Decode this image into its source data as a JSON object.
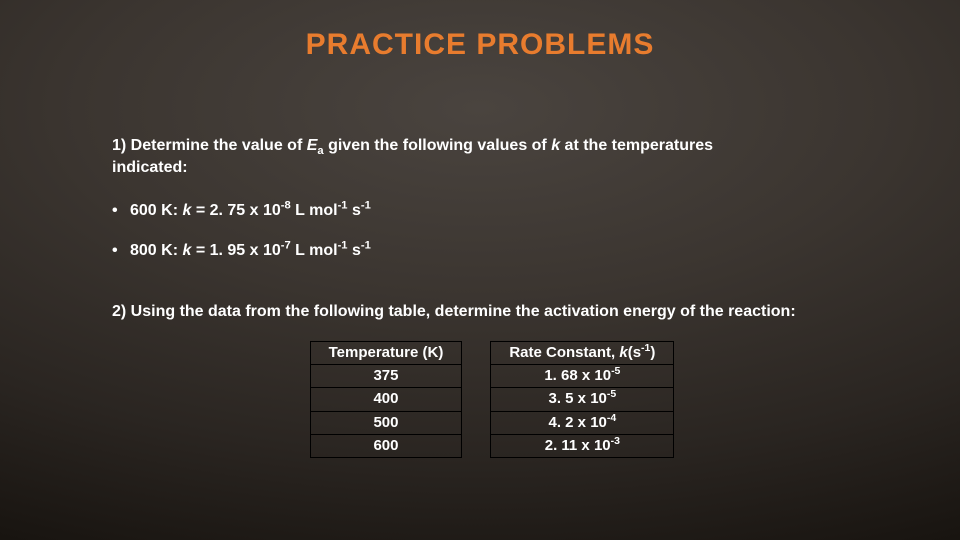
{
  "title": {
    "text": "PRACTICE PROBLEMS",
    "color": "#e87c2e"
  },
  "q1": {
    "prefix": "1) Determine the value of ",
    "var": "E",
    "varsub": "a",
    "mid": " given the following values of ",
    "k": "k",
    "suffix": " at the temperatures",
    "line2": "indicated:"
  },
  "bullets": [
    {
      "temp": "600 K: ",
      "k": "k",
      "eq": " = 2. 75 x 10",
      "exp": "-8",
      "unit1": " L mol",
      "u1exp": "-1",
      "unit2": " s",
      "u2exp": "-1"
    },
    {
      "temp": "800 K: ",
      "k": "k",
      "eq": " = 1. 95 x 10",
      "exp": "-7",
      "unit1": " L mol",
      "u1exp": "-1",
      "unit2": " s",
      "u2exp": "-1"
    }
  ],
  "q2": {
    "text": "2) Using the data from the following table, determine the activation energy of the reaction:"
  },
  "table": {
    "head": {
      "left": "Temperature (K)",
      "rightPrefix": "Rate Constant, ",
      "k": "k",
      "rightP1": "(s",
      "rightExp": "-1",
      "rightP2": ")"
    },
    "rows": [
      {
        "t": "375",
        "base": "1. 68 x 10",
        "exp": "-5"
      },
      {
        "t": "400",
        "base": "3. 5 x 10",
        "exp": "-5"
      },
      {
        "t": "500",
        "base": "4. 2 x 10",
        "exp": "-4"
      },
      {
        "t": "600",
        "base": "2. 11 x 10",
        "exp": "-3"
      }
    ],
    "border_color": "#000000"
  }
}
